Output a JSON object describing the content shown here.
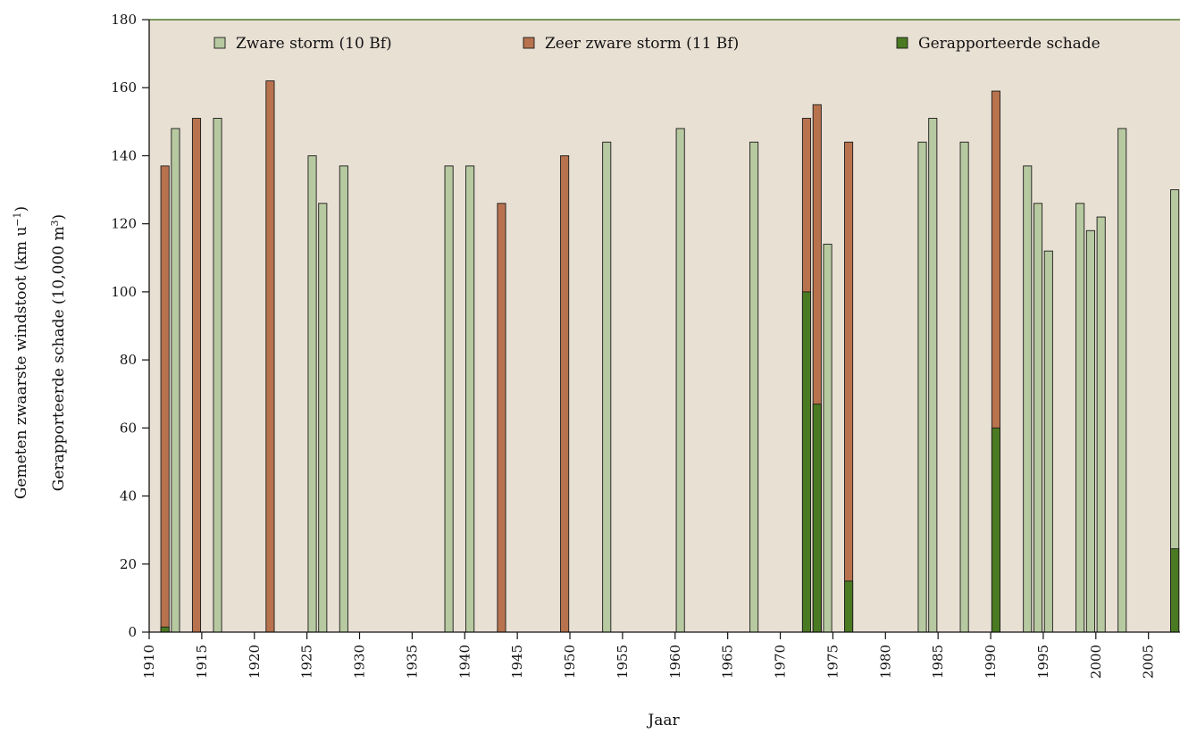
{
  "chart_data": {
    "type": "bar",
    "title": "",
    "xlabel": "Jaar",
    "ylabel_line1": "Gemeten zwaarste windstoot (km u",
    "ylabel_line1_sup": "−1",
    "ylabel_line1_end": ")",
    "ylabel_line2": "Gerapporteerde schade (10,000 m",
    "ylabel_line2_sup": "3",
    "ylabel_line2_end": ")",
    "xlim": [
      1910,
      2008
    ],
    "ylim": [
      0,
      180
    ],
    "x_ticks": [
      1910,
      1915,
      1920,
      1925,
      1930,
      1935,
      1940,
      1945,
      1950,
      1955,
      1960,
      1965,
      1970,
      1975,
      1980,
      1985,
      1990,
      1995,
      2000,
      2005
    ],
    "y_ticks": [
      0,
      20,
      40,
      60,
      80,
      100,
      120,
      140,
      160,
      180
    ],
    "grid": false,
    "legend_position": "top",
    "series": [
      {
        "name": "Zware storm (10 Bf)",
        "color": "#b7c9a0",
        "x": [
          1912,
          1916,
          1925,
          1926,
          1928,
          1938,
          1940,
          1953,
          1960,
          1967,
          1974,
          1983,
          1984,
          1987,
          1993,
          1994,
          1995,
          1998,
          1999,
          2000,
          2002,
          2007
        ],
        "values": [
          148,
          151,
          140,
          126,
          137,
          137,
          137,
          144,
          148,
          144,
          114,
          144,
          151,
          144,
          137,
          126,
          112,
          126,
          118,
          122,
          148,
          130
        ]
      },
      {
        "name": "Zeer zware storm (11 Bf)",
        "color": "#b8734e",
        "x": [
          1911,
          1914,
          1921,
          1943,
          1949,
          1972,
          1973,
          1976,
          1990
        ],
        "values": [
          137,
          151,
          162,
          126,
          140,
          151,
          155,
          144,
          159
        ]
      },
      {
        "name": "Gerapporteerde schade",
        "color": "#4a7a22",
        "x": [
          1911,
          1972,
          1973,
          1976,
          1990,
          2007
        ],
        "values": [
          1.5,
          100,
          67,
          15,
          60,
          24.5
        ]
      }
    ],
    "colors": {
      "plot_background": "#e9e0d4",
      "top_border": "#4f7a2a",
      "axis": "#111111"
    }
  }
}
